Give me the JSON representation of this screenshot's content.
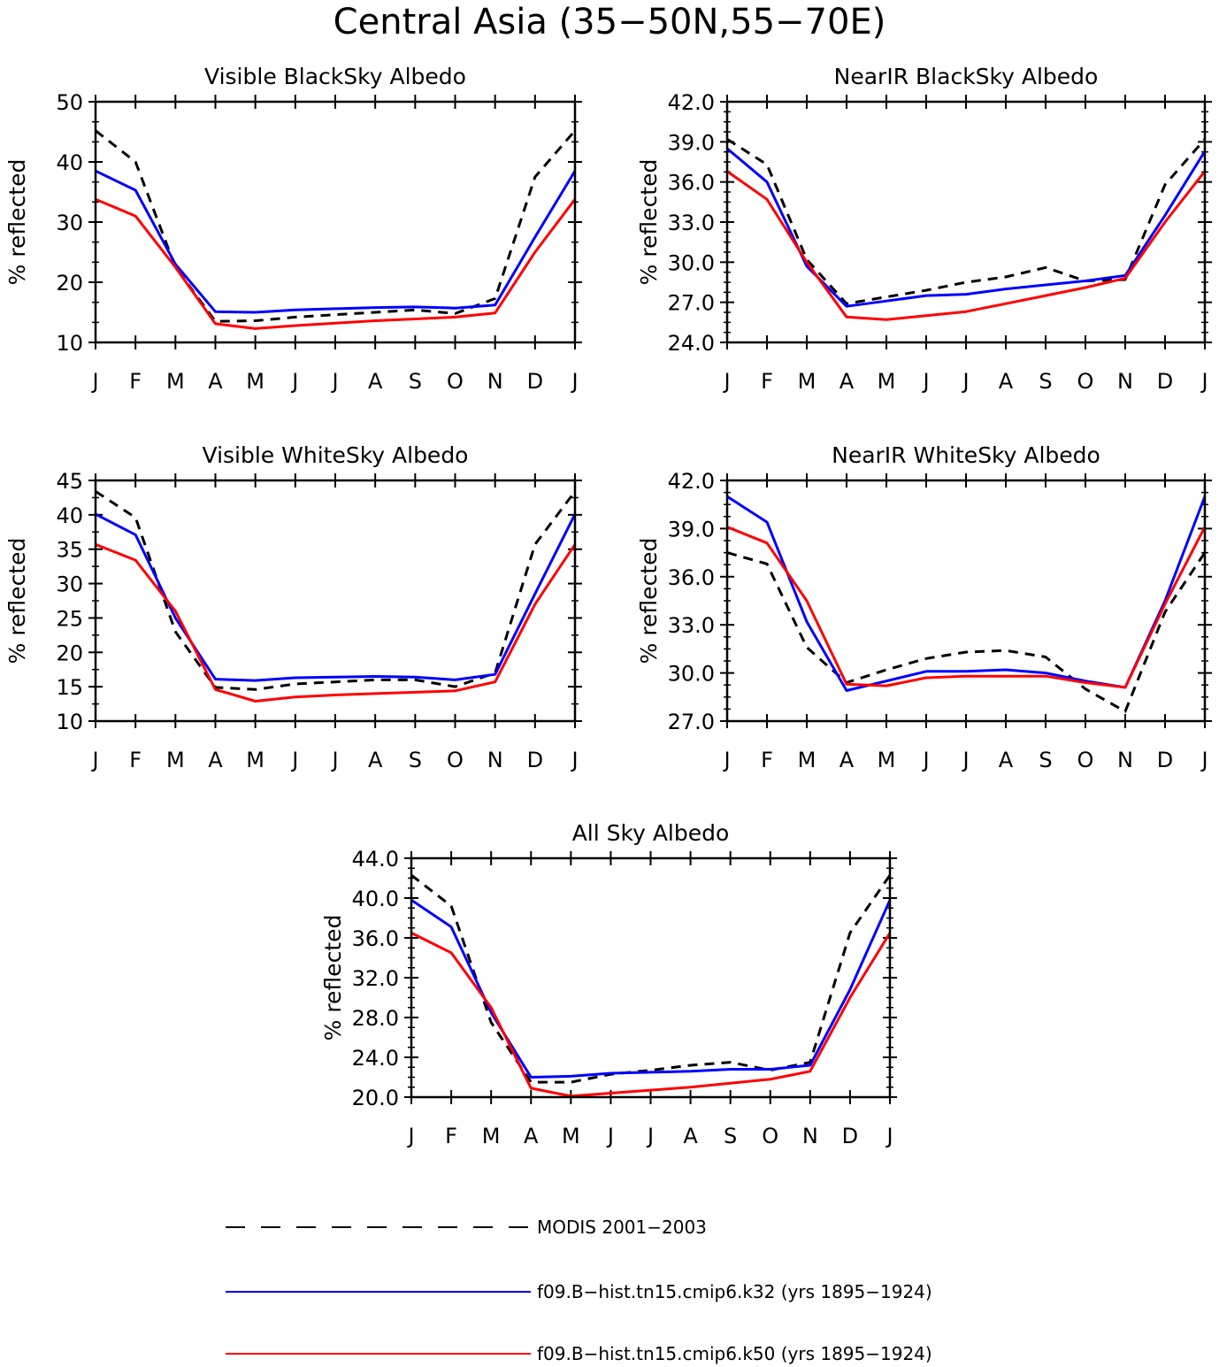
{
  "figure": {
    "title": "Central Asia (35−50N,55−70E)",
    "ylabel": "% reflected"
  },
  "legend": [
    {
      "name": "MODIS 2001−2003",
      "color": "#000000",
      "style": "dashed"
    },
    {
      "name": "f09.B−hist.tn15.cmip6.k32 (yrs 1895−1924)",
      "color": "#0000ff",
      "style": "solid"
    },
    {
      "name": "f09.B−hist.tn15.cmip6.k50 (yrs 1895−1924)",
      "color": "#ff0000",
      "style": "solid"
    }
  ],
  "chart_data": [
    {
      "type": "line",
      "title": "Visible BlackSky Albedo",
      "ylabel": "% reflected",
      "categories": [
        "J",
        "F",
        "M",
        "A",
        "M",
        "J",
        "J",
        "A",
        "S",
        "O",
        "N",
        "D",
        "J"
      ],
      "ylim": [
        10,
        50
      ],
      "yticks": [
        "10",
        "20",
        "30",
        "40",
        "50"
      ],
      "yminor": 2,
      "series": [
        {
          "name": "MODIS 2001−2003",
          "values": [
            45.2,
            40.0,
            22.5,
            13.5,
            13.6,
            14.2,
            14.6,
            15.0,
            15.4,
            14.8,
            17.3,
            37.5,
            45.2
          ]
        },
        {
          "name": "f09.B−hist.tn15.cmip6.k32 (yrs 1895−1924)",
          "values": [
            38.5,
            35.3,
            23.0,
            15.1,
            15.0,
            15.4,
            15.6,
            15.8,
            15.9,
            15.7,
            16.2,
            27.5,
            38.5
          ]
        },
        {
          "name": "f09.B−hist.tn15.cmip6.k50 (yrs 1895−1924)",
          "values": [
            33.8,
            31.0,
            22.5,
            13.1,
            12.3,
            12.8,
            13.2,
            13.6,
            13.9,
            14.2,
            14.9,
            25.0,
            33.8
          ]
        }
      ]
    },
    {
      "type": "line",
      "title": "NearIR BlackSky Albedo",
      "ylabel": "% reflected",
      "categories": [
        "J",
        "F",
        "M",
        "A",
        "M",
        "J",
        "J",
        "A",
        "S",
        "O",
        "N",
        "D",
        "J"
      ],
      "ylim": [
        24,
        42
      ],
      "yticks": [
        "24.0",
        "27.0",
        "30.0",
        "33.0",
        "36.0",
        "39.0",
        "42.0"
      ],
      "yminor": 3,
      "series": [
        {
          "name": "MODIS 2001−2003",
          "values": [
            39.2,
            37.3,
            30.2,
            26.9,
            27.4,
            27.9,
            28.5,
            28.9,
            29.6,
            28.6,
            28.7,
            35.8,
            39.2
          ]
        },
        {
          "name": "f09.B−hist.tn15.cmip6.k32 (yrs 1895−1924)",
          "values": [
            38.5,
            36.0,
            29.7,
            26.7,
            27.1,
            27.5,
            27.6,
            28.0,
            28.3,
            28.6,
            29.0,
            33.5,
            38.3
          ]
        },
        {
          "name": "f09.B−hist.tn15.cmip6.k50 (yrs 1895−1924)",
          "values": [
            36.8,
            34.7,
            30.0,
            25.9,
            25.7,
            26.0,
            26.3,
            26.9,
            27.5,
            28.1,
            28.8,
            33.0,
            36.8
          ]
        }
      ]
    },
    {
      "type": "line",
      "title": "Visible WhiteSky Albedo",
      "ylabel": "% reflected",
      "categories": [
        "J",
        "F",
        "M",
        "A",
        "M",
        "J",
        "J",
        "A",
        "S",
        "O",
        "N",
        "D",
        "J"
      ],
      "ylim": [
        10,
        45
      ],
      "yticks": [
        "10",
        "15",
        "20",
        "25",
        "30",
        "35",
        "40",
        "45"
      ],
      "yminor": 1,
      "series": [
        {
          "name": "MODIS 2001−2003",
          "values": [
            43.4,
            39.6,
            23.0,
            14.9,
            14.6,
            15.4,
            15.7,
            16.0,
            16.0,
            15.0,
            17.0,
            35.7,
            43.4
          ]
        },
        {
          "name": "f09.B−hist.tn15.cmip6.k32 (yrs 1895−1924)",
          "values": [
            40.1,
            37.1,
            25.0,
            16.1,
            15.9,
            16.3,
            16.4,
            16.5,
            16.4,
            16.0,
            16.8,
            28.5,
            40.1
          ]
        },
        {
          "name": "f09.B−hist.tn15.cmip6.k50 (yrs 1895−1924)",
          "values": [
            35.7,
            33.4,
            26.0,
            14.6,
            12.9,
            13.5,
            13.8,
            14.0,
            14.2,
            14.4,
            15.7,
            27.0,
            35.7
          ]
        }
      ]
    },
    {
      "type": "line",
      "title": "NearIR WhiteSky Albedo",
      "ylabel": "% reflected",
      "categories": [
        "J",
        "F",
        "M",
        "A",
        "M",
        "J",
        "J",
        "A",
        "S",
        "O",
        "N",
        "D",
        "J"
      ],
      "ylim": [
        27,
        42
      ],
      "yticks": [
        "27.0",
        "30.0",
        "33.0",
        "36.0",
        "39.0",
        "42.0"
      ],
      "yminor": 3,
      "series": [
        {
          "name": "MODIS 2001−2003",
          "values": [
            37.5,
            36.8,
            31.6,
            29.4,
            30.2,
            30.9,
            31.3,
            31.4,
            31.0,
            29.0,
            27.6,
            33.8,
            37.5
          ]
        },
        {
          "name": "f09.B−hist.tn15.cmip6.k32 (yrs 1895−1924)",
          "values": [
            41.0,
            39.4,
            33.2,
            28.9,
            29.5,
            30.1,
            30.1,
            30.2,
            30.0,
            29.5,
            29.1,
            34.5,
            41.0
          ]
        },
        {
          "name": "f09.B−hist.tn15.cmip6.k50 (yrs 1895−1924)",
          "values": [
            39.1,
            38.1,
            34.5,
            29.3,
            29.2,
            29.7,
            29.8,
            29.8,
            29.8,
            29.4,
            29.1,
            34.3,
            39.1
          ]
        }
      ]
    },
    {
      "type": "line",
      "title": "All Sky Albedo",
      "ylabel": "% reflected",
      "categories": [
        "J",
        "F",
        "M",
        "A",
        "M",
        "J",
        "J",
        "A",
        "S",
        "O",
        "N",
        "D",
        "J"
      ],
      "ylim": [
        20,
        44
      ],
      "yticks": [
        "20.0",
        "24.0",
        "28.0",
        "32.0",
        "36.0",
        "40.0",
        "44.0"
      ],
      "yminor": 3,
      "series": [
        {
          "name": "MODIS 2001−2003",
          "values": [
            42.3,
            39.2,
            27.5,
            21.5,
            21.5,
            22.3,
            22.7,
            23.2,
            23.5,
            22.7,
            23.5,
            36.5,
            42.3
          ]
        },
        {
          "name": "f09.B−hist.tn15.cmip6.k32 (yrs 1895−1924)",
          "values": [
            39.8,
            37.1,
            28.5,
            22.0,
            22.1,
            22.4,
            22.5,
            22.6,
            22.8,
            22.8,
            23.2,
            30.8,
            39.8
          ]
        },
        {
          "name": "f09.B−hist.tn15.cmip6.k50 (yrs 1895−1924)",
          "values": [
            36.5,
            34.5,
            29.0,
            20.9,
            20.1,
            20.4,
            20.7,
            21.0,
            21.4,
            21.8,
            22.6,
            30.0,
            36.5
          ]
        }
      ]
    }
  ]
}
